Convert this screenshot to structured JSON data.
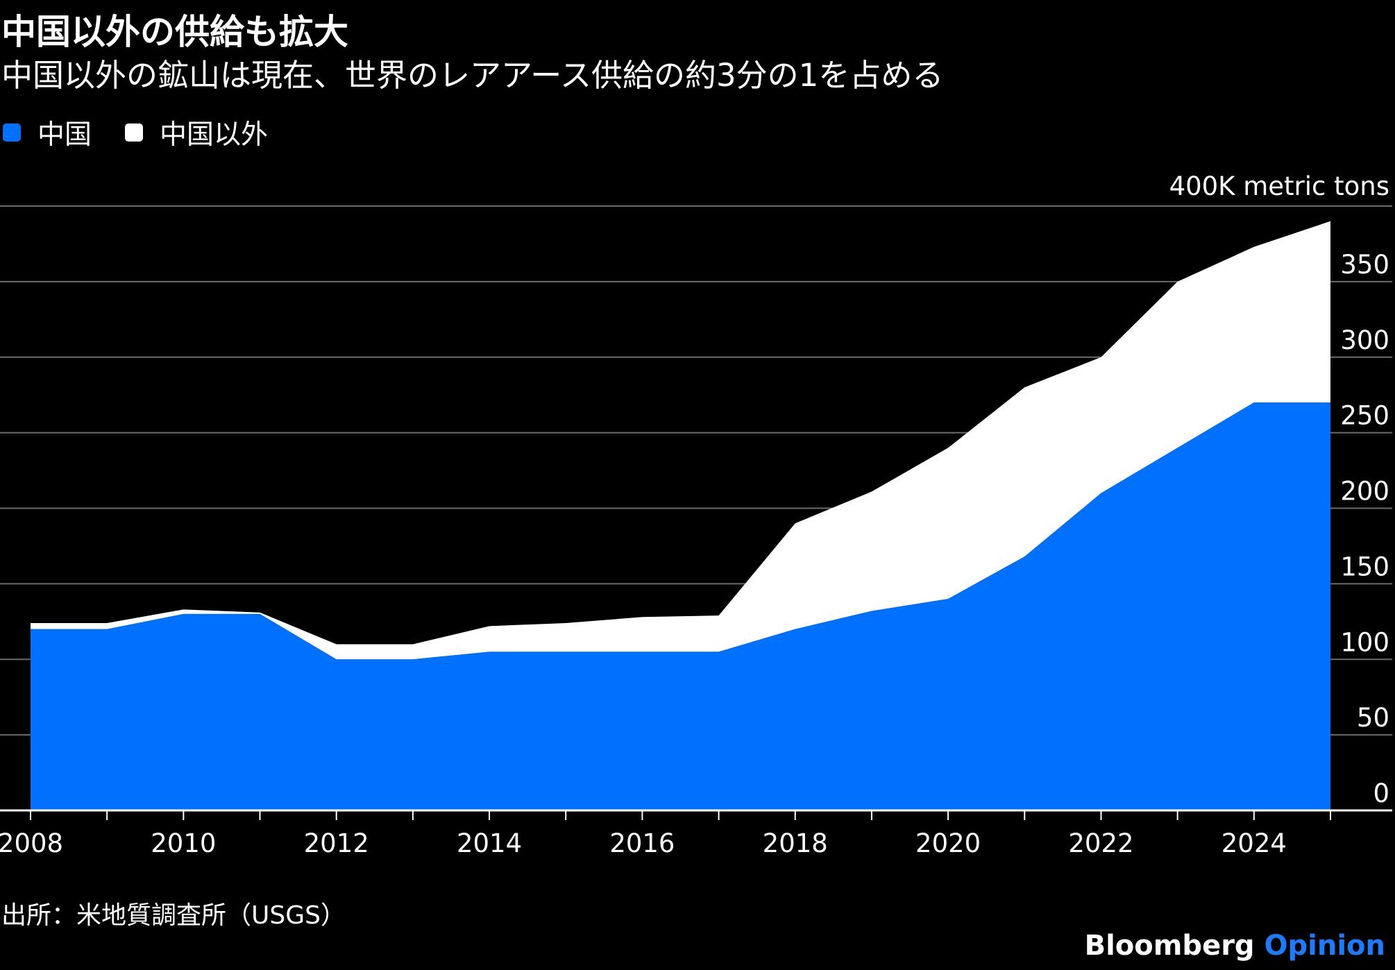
{
  "title": "中国以外の供給も拡大",
  "subtitle": "中国以外の鉱山は現在、世界のレアアース供給の約3分の1を占める",
  "source": "出所：米地質調査所（USGS）",
  "brand": {
    "name": "Bloomberg",
    "suffix": "Opinion",
    "name_color": "#ffffff",
    "suffix_color": "#1a7cff"
  },
  "legend": [
    {
      "label": "中国",
      "color": "#0070ff"
    },
    {
      "label": "中国以外",
      "color": "#ffffff"
    }
  ],
  "chart_data": {
    "type": "area",
    "stacked": true,
    "title": "中国以外の供給も拡大",
    "subtitle": "中国以外の鉱山は現在、世界のレアアース供給の約3分の1を占める",
    "unit_label": "400K metric tons",
    "x": [
      2008,
      2009,
      2010,
      2011,
      2012,
      2013,
      2014,
      2015,
      2016,
      2017,
      2018,
      2019,
      2020,
      2021,
      2022,
      2023,
      2024,
      2025
    ],
    "x_tick_labels": [
      "2008",
      "2010",
      "2012",
      "2014",
      "2016",
      "2018",
      "2020",
      "2022",
      "2024"
    ],
    "y_tick_labels": [
      "0",
      "50",
      "100",
      "150",
      "200",
      "250",
      "300",
      "350"
    ],
    "ylim": [
      0,
      400
    ],
    "series": [
      {
        "name": "中国",
        "color": "#0070ff",
        "values": [
          120,
          120,
          130,
          130,
          100,
          100,
          105,
          105,
          105,
          105,
          120,
          132,
          140,
          168,
          210,
          240,
          270,
          270
        ]
      },
      {
        "name": "中国以外",
        "color": "#ffffff",
        "values": [
          4,
          4,
          3,
          1,
          10,
          10,
          17,
          19,
          23,
          24,
          70,
          79,
          100,
          112,
          90,
          110,
          103,
          120
        ]
      }
    ],
    "grid": true,
    "legend_position": "top-left"
  }
}
